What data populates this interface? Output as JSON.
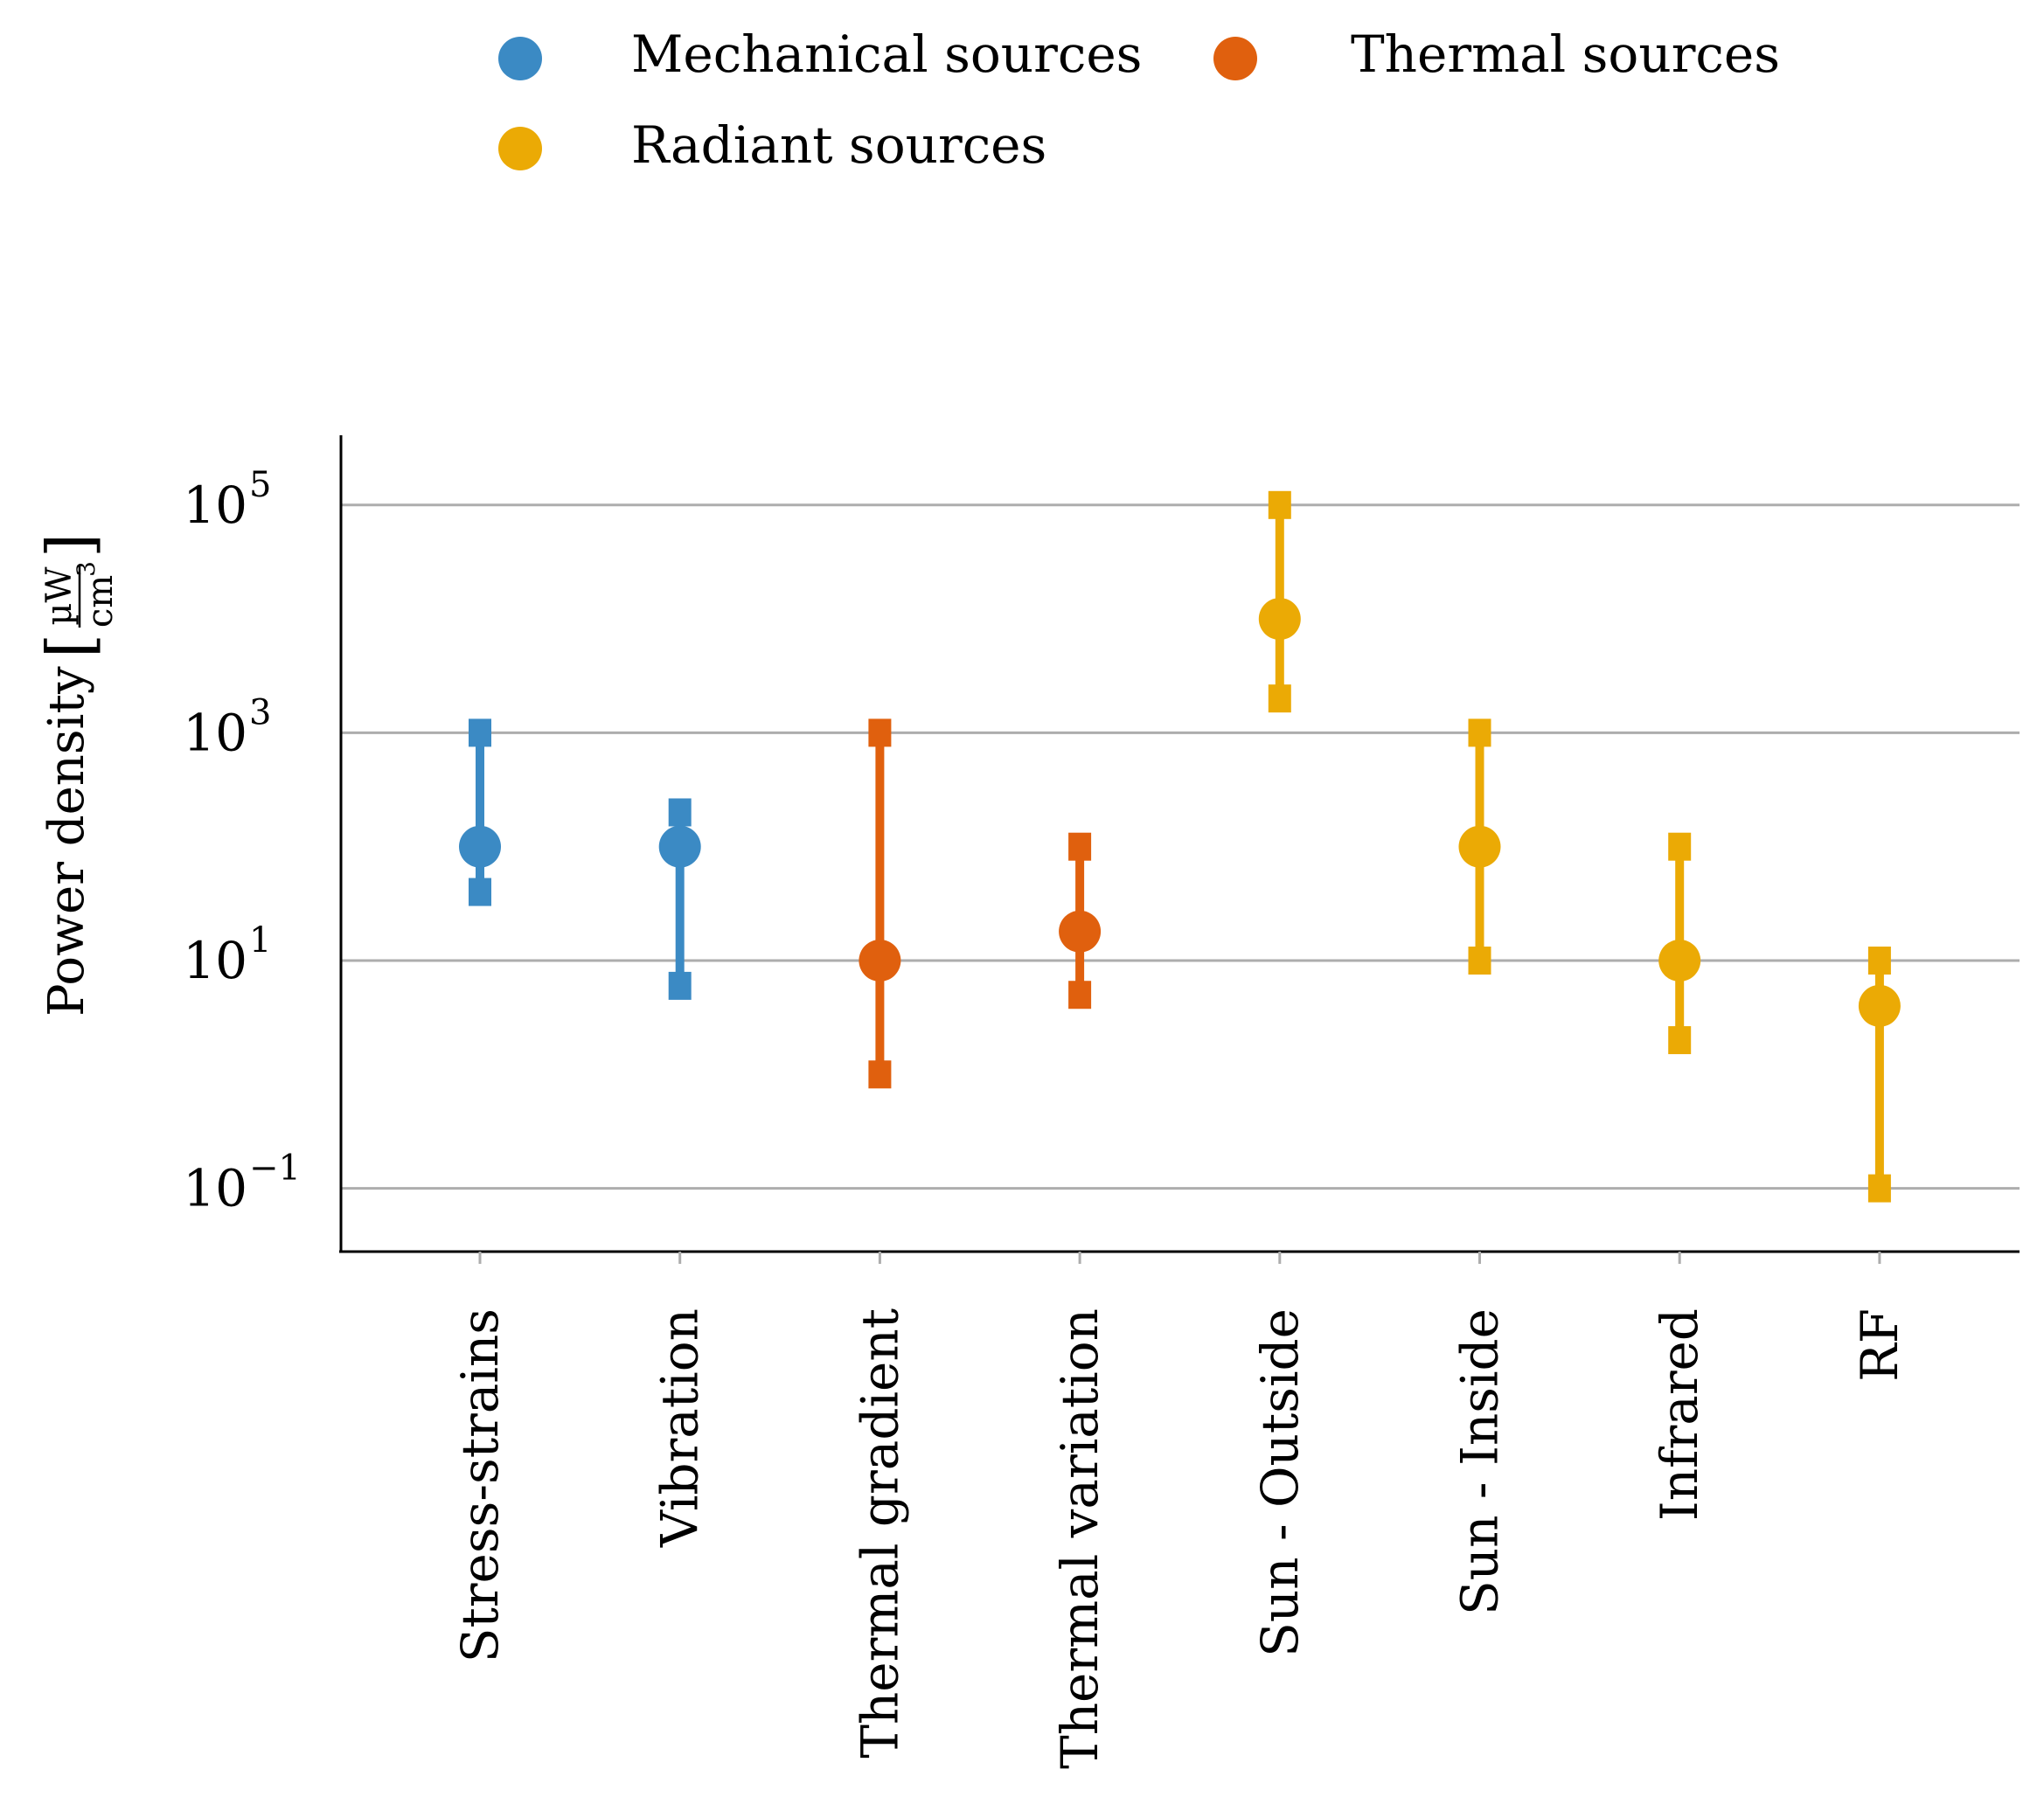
{
  "chart_data": {
    "type": "scatter",
    "yscale": "log",
    "ylim": [
      0.025,
      400000
    ],
    "ylabel": "Power density",
    "ylabel_unit": {
      "numerator": "µW",
      "denominator": "cm",
      "denominator_exponent": "3"
    },
    "yticks": [
      {
        "value": 0.1,
        "base": "10",
        "exponent": "−1"
      },
      {
        "value": 10,
        "base": "10",
        "exponent": "1"
      },
      {
        "value": 1000,
        "base": "10",
        "exponent": "3"
      },
      {
        "value": 100000,
        "base": "10",
        "exponent": "5"
      }
    ],
    "grid": true,
    "legend_position": "top",
    "series": [
      {
        "name": "Mechanical sources",
        "color": "#3B8AC4"
      },
      {
        "name": "Thermal sources",
        "color": "#E0600E"
      },
      {
        "name": "Radiant sources",
        "color": "#EBAA05"
      }
    ],
    "categories": [
      {
        "label": "Stress-strains",
        "series": 0,
        "value": 100,
        "low": 40,
        "high": 1000
      },
      {
        "label": "Vibration",
        "series": 0,
        "value": 100,
        "low": 6,
        "high": 200
      },
      {
        "label": "Thermal gradient",
        "series": 1,
        "value": 10,
        "low": 1,
        "high": 1000
      },
      {
        "label": "Thermal variation",
        "series": 1,
        "value": 18,
        "low": 5,
        "high": 100
      },
      {
        "label": "Sun - Outside",
        "series": 2,
        "value": 10000,
        "low": 2000,
        "high": 100000
      },
      {
        "label": "Sun - Inside",
        "series": 2,
        "value": 100,
        "low": 10,
        "high": 1000
      },
      {
        "label": "Infrared",
        "series": 2,
        "value": 10,
        "low": 2,
        "high": 100
      },
      {
        "label": "RF",
        "series": 2,
        "value": 4,
        "low": 0.1,
        "high": 10
      }
    ]
  }
}
